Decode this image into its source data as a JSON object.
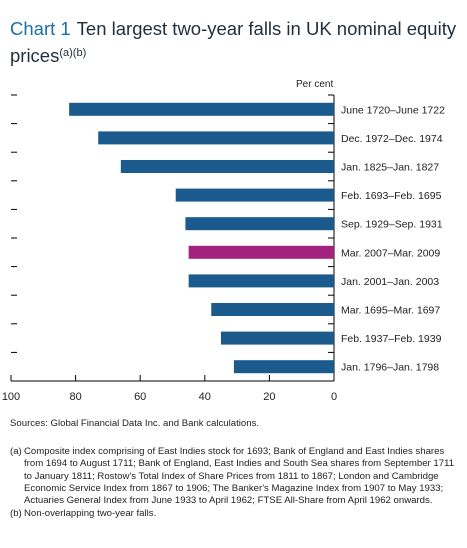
{
  "title": {
    "chart_number": "Chart 1",
    "text": "Ten largest two-year falls in UK nominal equity prices",
    "footnote_refs": "(a)(b)"
  },
  "colors": {
    "bar": "#1a5a8c",
    "highlight": "#a3217f",
    "axis": "#000000",
    "title_accent": "#1a6fa8"
  },
  "chart_data": {
    "type": "bar",
    "orientation": "horizontal",
    "unit_label": "Per cent",
    "x_reversed": true,
    "xlim": [
      100,
      0
    ],
    "xticks": [
      100,
      80,
      60,
      40,
      20,
      0
    ],
    "categories": [
      "June 1720–June 1722",
      "Dec. 1972–Dec. 1974",
      "Jan. 1825–Jan. 1827",
      "Feb. 1693–Feb. 1695",
      "Sep. 1929–Sep. 1931",
      "Mar. 2007–Mar. 2009",
      "Jan. 2001–Jan. 2003",
      "Mar. 1695–Mar. 1697",
      "Feb. 1937–Feb. 1939",
      "Jan. 1796–Jan. 1798"
    ],
    "values": [
      82,
      73,
      66,
      49,
      46,
      45,
      45,
      38,
      35,
      31
    ],
    "highlighted": [
      "Mar. 2007–Mar. 2009"
    ]
  },
  "sources": "Sources: Global Financial Data Inc. and Bank calculations.",
  "notes": [
    {
      "marker": "(a)",
      "text": "Composite index comprising of East Indies stock for 1693; Bank of England and East Indies shares from 1694 to August 1711; Bank of England, East Indies and South Sea shares from September 1711 to January 1811; Rostow's Total Index of Share Prices from 1811 to 1867; London and Cambridge Economic Service Index from 1867 to 1906; The Banker's Magazine Index from 1907 to May 1933; Actuaries General Index from June 1933 to April 1962; FTSE All-Share from April 1962 onwards."
    },
    {
      "marker": "(b)",
      "text": "Non-overlapping two-year falls."
    }
  ]
}
